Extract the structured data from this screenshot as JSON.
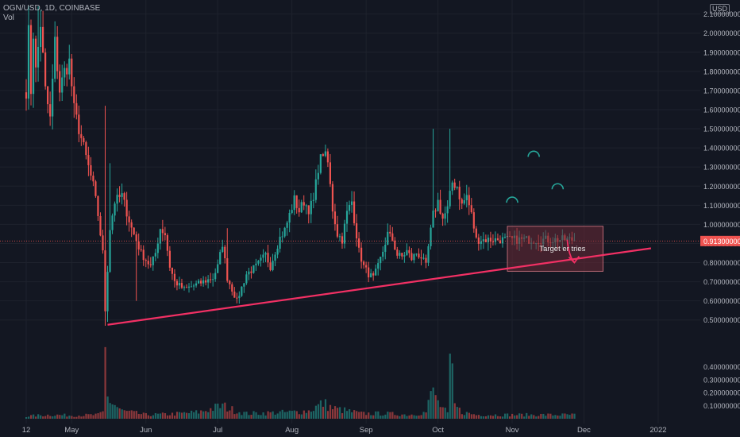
{
  "header": {
    "symbol_line": "OGN/USD, 1D, COINBASE",
    "volume_label": "Vol",
    "currency": "USD"
  },
  "colors": {
    "background": "#131722",
    "grid": "#1e222d",
    "axis_text": "#b2b5be",
    "up": "#26a69a",
    "down": "#ef5350",
    "trendline": "#f23064",
    "price_tag": "#ef5350",
    "zone_fill": "#6b2a36",
    "zone_border": "#d97a86"
  },
  "chart_data": {
    "type": "candlestick",
    "title": "",
    "xlabel": "",
    "ylabel": "",
    "x_ticks": [
      "12",
      "May",
      "Jun",
      "Jul",
      "Aug",
      "Sep",
      "Oct",
      "Nov",
      "Dec",
      "2022"
    ],
    "x_tick_days": [
      0,
      19,
      50,
      80,
      111,
      142,
      172,
      203,
      233,
      264
    ],
    "y_ticks": [
      "2.10000000",
      "2.00000000",
      "1.90000000",
      "1.80000000",
      "1.70000000",
      "1.60000000",
      "1.50000000",
      "1.40000000",
      "1.30000000",
      "1.20000000",
      "1.10000000",
      "1.00000000",
      "0.90000000",
      "0.80000000",
      "0.70000000",
      "0.60000000",
      "0.50000000"
    ],
    "y_tick_values": [
      2.1,
      2.0,
      1.9,
      1.8,
      1.7,
      1.6,
      1.5,
      1.4,
      1.3,
      1.2,
      1.1,
      1.0,
      0.9,
      0.8,
      0.7,
      0.6,
      0.5
    ],
    "ylim": [
      0.42,
      2.14
    ],
    "volume_ticks": [
      "0.40000000",
      "0.30000000",
      "0.20000000",
      "0.10000000"
    ],
    "volume_tick_values": [
      0.4,
      0.3,
      0.2,
      0.1
    ],
    "volume_lim": [
      0,
      0.72
    ],
    "last_price": "0.91300000",
    "last_price_value": 0.913,
    "series_start_date": "2021-04-12",
    "series_end_date": "2021-11-27",
    "close_keypoints": [
      [
        4,
        1.8
      ],
      [
        6,
        2.05
      ],
      [
        8,
        1.7
      ],
      [
        10,
        1.55
      ],
      [
        12,
        1.95
      ],
      [
        14,
        1.7
      ],
      [
        16,
        1.8
      ],
      [
        18,
        1.85
      ],
      [
        20,
        1.6
      ],
      [
        22,
        1.5
      ],
      [
        24,
        1.4
      ],
      [
        26,
        1.3
      ],
      [
        28,
        1.2
      ],
      [
        30,
        1.05
      ],
      [
        32,
        0.85
      ],
      [
        33,
        0.55
      ],
      [
        35,
        0.98
      ],
      [
        37,
        1.12
      ],
      [
        40,
        1.15
      ],
      [
        44,
        0.98
      ],
      [
        48,
        0.85
      ],
      [
        52,
        0.78
      ],
      [
        54,
        0.85
      ],
      [
        56,
        0.98
      ],
      [
        58,
        0.95
      ],
      [
        60,
        0.78
      ],
      [
        62,
        0.7
      ],
      [
        66,
        0.66
      ],
      [
        70,
        0.68
      ],
      [
        74,
        0.7
      ],
      [
        78,
        0.72
      ],
      [
        80,
        0.78
      ],
      [
        82,
        0.9
      ],
      [
        84,
        0.72
      ],
      [
        86,
        0.66
      ],
      [
        88,
        0.6
      ],
      [
        92,
        0.74
      ],
      [
        96,
        0.78
      ],
      [
        100,
        0.84
      ],
      [
        102,
        0.78
      ],
      [
        104,
        0.86
      ],
      [
        106,
        0.93
      ],
      [
        108,
        0.97
      ],
      [
        110,
        1.05
      ],
      [
        112,
        1.13
      ],
      [
        114,
        1.07
      ],
      [
        116,
        1.12
      ],
      [
        118,
        1.08
      ],
      [
        120,
        1.12
      ],
      [
        122,
        1.3
      ],
      [
        124,
        1.38
      ],
      [
        126,
        1.32
      ],
      [
        128,
        1.08
      ],
      [
        130,
        0.95
      ],
      [
        132,
        0.92
      ],
      [
        134,
        1.06
      ],
      [
        136,
        1.12
      ],
      [
        137,
        1.03
      ],
      [
        139,
        0.86
      ],
      [
        141,
        0.78
      ],
      [
        143,
        0.74
      ],
      [
        145,
        0.72
      ],
      [
        147,
        0.78
      ],
      [
        149,
        0.86
      ],
      [
        151,
        0.95
      ],
      [
        153,
        0.92
      ],
      [
        155,
        0.84
      ],
      [
        157,
        0.83
      ],
      [
        159,
        0.86
      ],
      [
        161,
        0.82
      ],
      [
        163,
        0.85
      ],
      [
        165,
        0.83
      ],
      [
        167,
        0.78
      ],
      [
        168,
        0.88
      ],
      [
        170,
        1.05
      ],
      [
        172,
        1.12
      ],
      [
        174,
        1.03
      ],
      [
        176,
        1.08
      ],
      [
        178,
        1.22
      ],
      [
        180,
        1.2
      ],
      [
        182,
        1.1
      ],
      [
        184,
        1.15
      ],
      [
        186,
        1.05
      ],
      [
        188,
        0.92
      ]
    ],
    "volume_keypoints": [
      [
        0,
        0.02
      ],
      [
        10,
        0.03
      ],
      [
        20,
        0.025
      ],
      [
        30,
        0.03
      ],
      [
        32,
        0.05
      ],
      [
        33,
        0.55
      ],
      [
        34,
        0.16
      ],
      [
        36,
        0.12
      ],
      [
        40,
        0.06
      ],
      [
        50,
        0.03
      ],
      [
        60,
        0.035
      ],
      [
        72,
        0.05
      ],
      [
        82,
        0.1
      ],
      [
        86,
        0.07
      ],
      [
        92,
        0.04
      ],
      [
        110,
        0.05
      ],
      [
        118,
        0.06
      ],
      [
        124,
        0.12
      ],
      [
        128,
        0.08
      ],
      [
        140,
        0.04
      ],
      [
        150,
        0.04
      ],
      [
        160,
        0.03
      ],
      [
        167,
        0.05
      ],
      [
        170,
        0.24
      ],
      [
        172,
        0.12
      ],
      [
        174,
        0.08
      ],
      [
        176,
        0.04
      ],
      [
        177,
        0.5
      ],
      [
        179,
        0.1
      ],
      [
        182,
        0.05
      ],
      [
        188,
        0.03
      ]
    ],
    "trendline": {
      "from": [
        "2021-05-16",
        0.475
      ],
      "to": [
        "2021-12-29",
        0.875
      ]
    },
    "zone": {
      "from_date": "2021-10-30",
      "to_date": "2021-12-09",
      "top": 0.99,
      "bottom": 0.755
    },
    "arrow": {
      "from": [
        "2021-11-24",
        0.92
      ],
      "to": [
        "2021-11-27",
        0.8
      ]
    },
    "pattern_arcs": [
      {
        "date": "2021-11-01",
        "price": 1.13
      },
      {
        "date": "2021-11-10",
        "price": 1.37
      },
      {
        "date": "2021-11-20",
        "price": 1.2
      }
    ],
    "annotations": [
      {
        "text": "Target er tries",
        "date": "2021-11-22",
        "price": 0.86
      }
    ]
  }
}
